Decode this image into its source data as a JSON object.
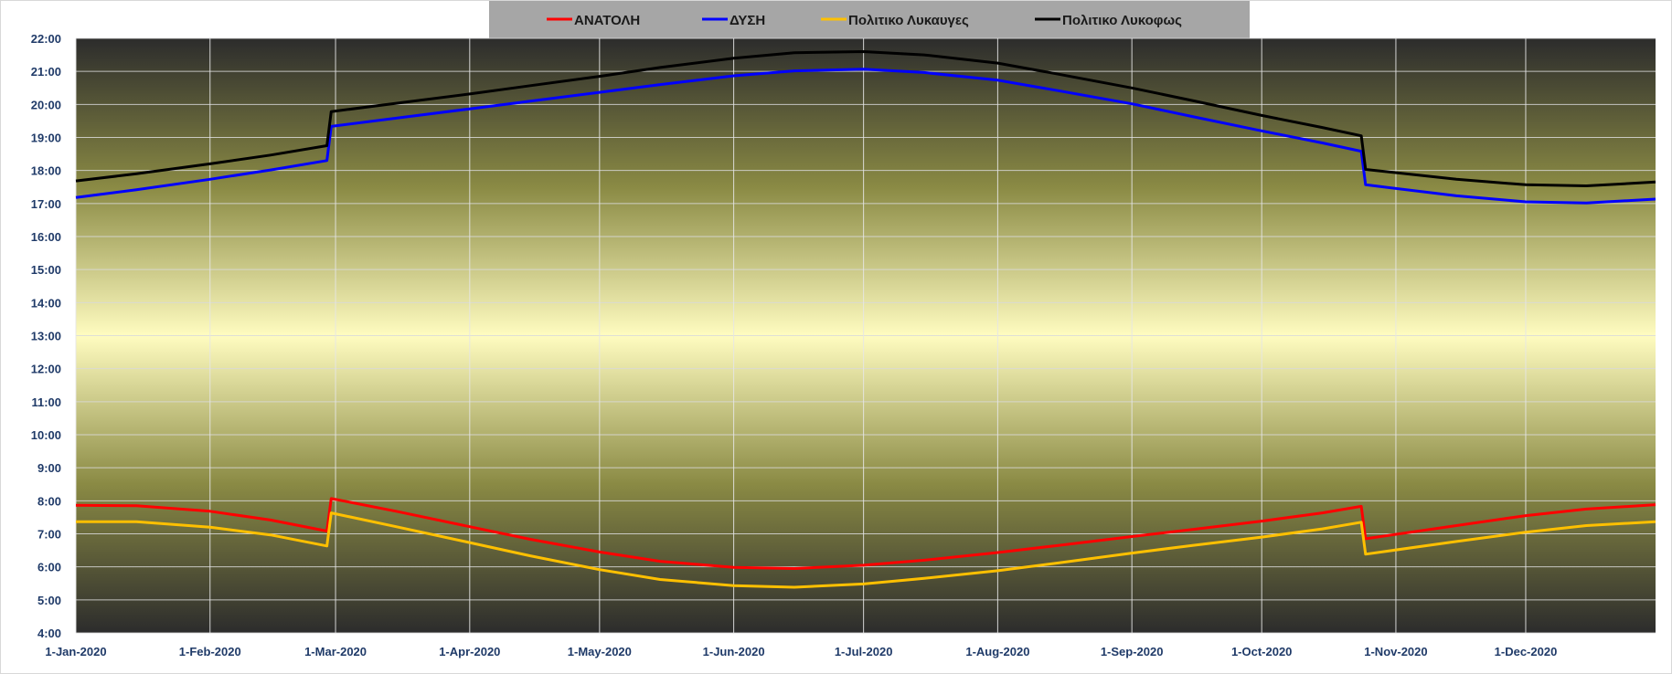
{
  "chart_data": {
    "type": "line",
    "title": "",
    "xlabel": "",
    "ylabel": "",
    "x_range": [
      "2020-01-01",
      "2020-12-31"
    ],
    "x_ticks": [
      "1-Jan-2020",
      "1-Feb-2020",
      "1-Mar-2020",
      "1-Apr-2020",
      "1-May-2020",
      "1-Jun-2020",
      "1-Jul-2020",
      "1-Aug-2020",
      "1-Sep-2020",
      "1-Oct-2020",
      "1-Nov-2020",
      "1-Dec-2020"
    ],
    "y_ticks": [
      "4:00",
      "5:00",
      "6:00",
      "7:00",
      "8:00",
      "9:00",
      "10:00",
      "11:00",
      "12:00",
      "13:00",
      "14:00",
      "15:00",
      "16:00",
      "17:00",
      "18:00",
      "19:00",
      "20:00",
      "21:00",
      "22:00"
    ],
    "ylim": [
      "4:00",
      "22:00"
    ],
    "grid": true,
    "legend_position": "top-center",
    "background_gradient": [
      "#2c2c2c",
      "#8a8a44",
      "#fffcc0",
      "#8a8a44",
      "#2c2c2c"
    ],
    "series": [
      {
        "name": "ΑΝΑΤΟΛΗ",
        "color": "#ff0000",
        "x": [
          "2020-01-01",
          "2020-01-15",
          "2020-02-01",
          "2020-02-15",
          "2020-02-28",
          "2020-02-29",
          "2020-03-15",
          "2020-04-01",
          "2020-04-15",
          "2020-05-01",
          "2020-05-15",
          "2020-06-01",
          "2020-06-15",
          "2020-07-01",
          "2020-07-15",
          "2020-08-01",
          "2020-08-15",
          "2020-09-01",
          "2020-09-15",
          "2020-10-01",
          "2020-10-15",
          "2020-10-24",
          "2020-10-25",
          "2020-11-15",
          "2020-12-01",
          "2020-12-15",
          "2020-12-31"
        ],
        "y": [
          "7:52",
          "7:51",
          "7:41",
          "7:25",
          "7:05",
          "8:04",
          "7:41",
          "7:13",
          "6:50",
          "6:27",
          "6:10",
          "5:59",
          "5:57",
          "6:03",
          "6:12",
          "6:26",
          "6:39",
          "6:55",
          "7:08",
          "7:23",
          "7:38",
          "7:50",
          "6:51",
          "7:15",
          "7:33",
          "7:45",
          "7:53"
        ]
      },
      {
        "name": "ΔΥΣΗ",
        "color": "#0000ff",
        "x": [
          "2020-01-01",
          "2020-01-15",
          "2020-02-01",
          "2020-02-15",
          "2020-02-28",
          "2020-02-29",
          "2020-03-15",
          "2020-04-01",
          "2020-04-15",
          "2020-05-01",
          "2020-05-15",
          "2020-06-01",
          "2020-06-15",
          "2020-07-01",
          "2020-07-15",
          "2020-08-01",
          "2020-08-15",
          "2020-09-01",
          "2020-09-15",
          "2020-10-01",
          "2020-10-15",
          "2020-10-24",
          "2020-10-25",
          "2020-11-15",
          "2020-12-01",
          "2020-12-15",
          "2020-12-31"
        ],
        "y": [
          "17:11",
          "17:25",
          "17:44",
          "18:01",
          "18:18",
          "19:20",
          "19:35",
          "19:52",
          "20:06",
          "20:22",
          "20:36",
          "20:52",
          "21:01",
          "21:04",
          "20:58",
          "20:44",
          "20:25",
          "20:01",
          "19:38",
          "19:12",
          "18:50",
          "18:35",
          "17:34",
          "17:14",
          "17:03",
          "17:01",
          "17:08"
        ]
      },
      {
        "name": "Πολιτικο Λυκαυγες",
        "color": "#ffc000",
        "x": [
          "2020-01-01",
          "2020-01-15",
          "2020-02-01",
          "2020-02-15",
          "2020-02-28",
          "2020-02-29",
          "2020-03-15",
          "2020-04-01",
          "2020-04-15",
          "2020-05-01",
          "2020-05-15",
          "2020-06-01",
          "2020-06-15",
          "2020-07-01",
          "2020-07-15",
          "2020-08-01",
          "2020-08-15",
          "2020-09-01",
          "2020-09-15",
          "2020-10-01",
          "2020-10-15",
          "2020-10-24",
          "2020-10-25",
          "2020-11-15",
          "2020-12-01",
          "2020-12-15",
          "2020-12-31"
        ],
        "y": [
          "7:22",
          "7:22",
          "7:12",
          "6:58",
          "6:38",
          "7:38",
          "7:13",
          "6:44",
          "6:20",
          "5:55",
          "5:37",
          "5:26",
          "5:23",
          "5:29",
          "5:39",
          "5:53",
          "6:07",
          "6:25",
          "6:39",
          "6:54",
          "7:09",
          "7:21",
          "6:23",
          "6:46",
          "7:03",
          "7:15",
          "7:22"
        ]
      },
      {
        "name": "Πολιτικο Λυκοφως",
        "color": "#000000",
        "x": [
          "2020-01-01",
          "2020-01-15",
          "2020-02-01",
          "2020-02-15",
          "2020-02-28",
          "2020-02-29",
          "2020-03-15",
          "2020-04-01",
          "2020-04-15",
          "2020-05-01",
          "2020-05-15",
          "2020-06-01",
          "2020-06-15",
          "2020-07-01",
          "2020-07-15",
          "2020-08-01",
          "2020-08-15",
          "2020-09-01",
          "2020-09-15",
          "2020-10-01",
          "2020-10-15",
          "2020-10-24",
          "2020-10-25",
          "2020-11-15",
          "2020-12-01",
          "2020-12-15",
          "2020-12-31"
        ],
        "y": [
          "17:41",
          "17:54",
          "18:12",
          "18:28",
          "18:45",
          "19:47",
          "20:02",
          "20:19",
          "20:34",
          "20:51",
          "21:07",
          "21:24",
          "21:34",
          "21:36",
          "21:30",
          "21:15",
          "20:55",
          "20:30",
          "20:07",
          "19:40",
          "19:18",
          "19:03",
          "18:02",
          "17:44",
          "17:34",
          "17:32",
          "17:39"
        ]
      }
    ]
  }
}
